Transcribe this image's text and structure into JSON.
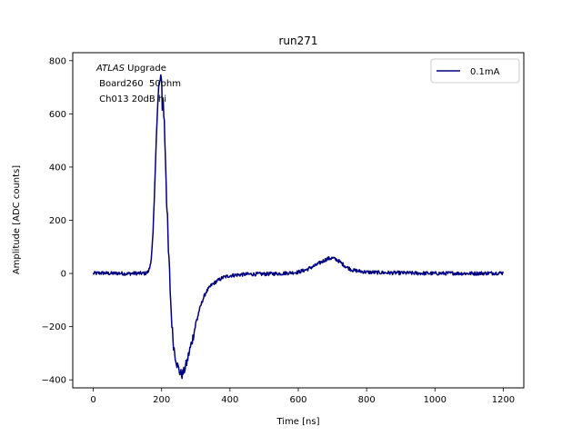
{
  "chart_data": {
    "type": "line",
    "title": "run271",
    "xlabel": "Time [ns]",
    "ylabel": "Amplitude [ADC counts]",
    "xlim": [
      -60,
      1260
    ],
    "ylim": [
      -430,
      830
    ],
    "xticks": [
      0,
      200,
      400,
      600,
      800,
      1000,
      1200
    ],
    "yticks": [
      -400,
      -200,
      0,
      200,
      400,
      600,
      800
    ],
    "xtick_labels": [
      "0",
      "200",
      "400",
      "600",
      "800",
      "1000",
      "1200"
    ],
    "ytick_labels": [
      "−400",
      "−200",
      "0",
      "200",
      "400",
      "600",
      "800"
    ],
    "annotation": {
      "atlas": "ATLAS",
      "line1_rest": " Upgrade",
      "line2": " Board260  50ohm",
      "line3": " Ch013 20dB hi"
    },
    "legend": {
      "position": "upper right"
    },
    "grid": false,
    "series": [
      {
        "name": "0.1mA",
        "color": "#000080",
        "x": [
          0,
          25,
          50,
          75,
          100,
          125,
          150,
          160,
          165,
          170,
          175,
          180,
          185,
          190,
          193,
          196,
          199,
          202,
          205,
          208,
          212,
          216,
          220,
          225,
          230,
          235,
          240,
          245,
          250,
          255,
          260,
          265,
          270,
          275,
          280,
          290,
          300,
          310,
          320,
          330,
          345,
          360,
          380,
          400,
          425,
          450,
          500,
          550,
          600,
          625,
          650,
          670,
          685,
          700,
          715,
          725,
          740,
          760,
          800,
          850,
          900,
          950,
          1000,
          1050,
          1100,
          1150,
          1200
        ],
        "y": [
          0,
          2,
          0,
          1,
          -1,
          1,
          0,
          5,
          20,
          60,
          150,
          330,
          530,
          650,
          720,
          690,
          770,
          640,
          650,
          560,
          420,
          230,
          80,
          -60,
          -190,
          -270,
          -310,
          -340,
          -360,
          -375,
          -380,
          -370,
          -350,
          -330,
          -300,
          -250,
          -190,
          -140,
          -100,
          -70,
          -45,
          -30,
          -15,
          -8,
          -5,
          -3,
          -2,
          0,
          5,
          15,
          30,
          45,
          55,
          58,
          50,
          40,
          25,
          12,
          5,
          3,
          2,
          1,
          0,
          1,
          0,
          1,
          2
        ]
      }
    ]
  }
}
